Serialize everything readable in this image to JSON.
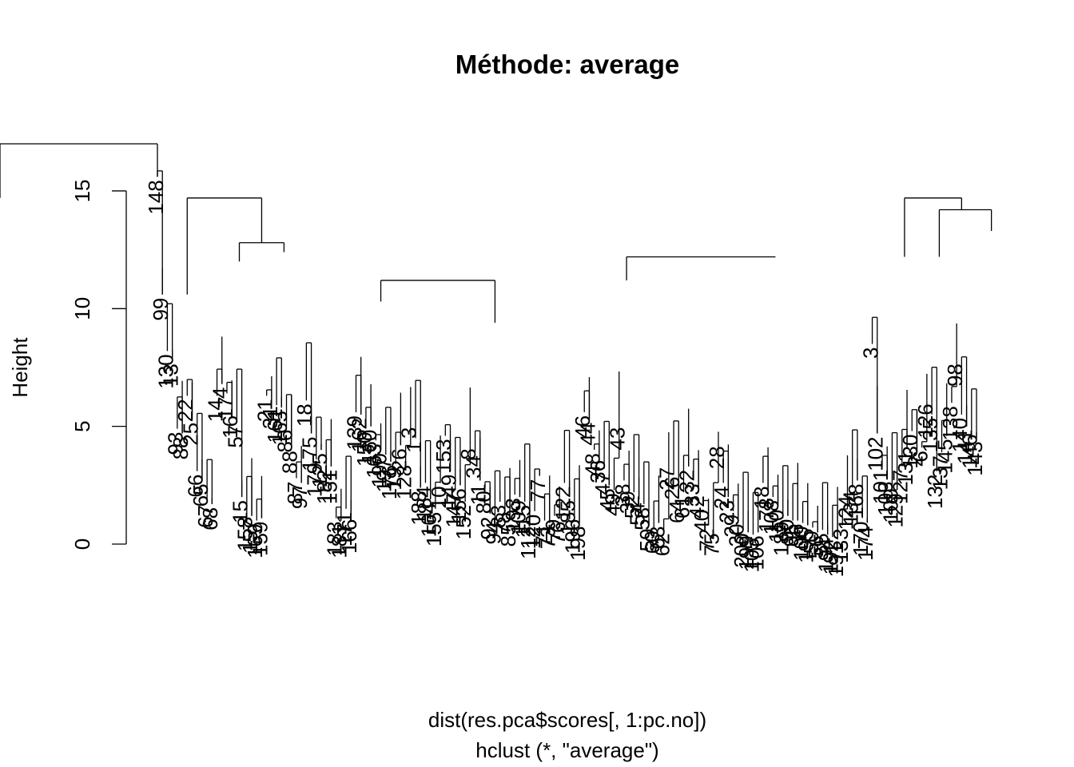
{
  "chart_data": {
    "type": "dendrogram",
    "title": "Méthode: average",
    "ylabel": "Height",
    "xlabel": "dist(res.pca$scores[, 1:pc.no])",
    "sub": "hclust (*, \"average\")",
    "ylim": [
      0,
      17
    ],
    "yticks": [
      0,
      5,
      10,
      15
    ],
    "merges": [
      {
        "left": [
          0,
          15.6
        ],
        "right": [
          13,
          14.7
        ],
        "height": 17.0
      },
      {
        "left": [
          2,
          12.0
        ],
        "right": [
          3,
          12.4
        ],
        "height": 12.8
      },
      {
        "left": [
          1,
          10.6
        ],
        "right": [
          4,
          12.8
        ],
        "height": 14.7
      },
      {
        "left": [
          5,
          10.3
        ],
        "right": [
          6,
          9.4
        ],
        "height": 11.2
      },
      {
        "left": [
          7,
          11.2
        ],
        "right": [
          8,
          12.2
        ],
        "height": 12.2
      },
      {
        "left": [
          9,
          12.2
        ],
        "right": [
          11,
          14.2
        ],
        "height": 14.7
      },
      {
        "left": [
          10,
          12.2
        ],
        "right": [
          12,
          13.3
        ],
        "height": 14.2
      }
    ],
    "leaves": [
      {
        "label": "148",
        "height": 15.6
      },
      {
        "label": "99",
        "height": 10.6
      },
      {
        "label": "130",
        "height": 8.2
      },
      {
        "label": "13",
        "height": 7.8
      },
      {
        "label": "93",
        "height": 4.9
      },
      {
        "label": "88",
        "height": 4.7
      },
      {
        "label": "22",
        "height": 6.3
      },
      {
        "label": "25",
        "height": 5.3
      },
      {
        "label": "66",
        "height": 3.1
      },
      {
        "label": "65",
        "height": 2.7
      },
      {
        "label": "67",
        "height": 1.8
      },
      {
        "label": "68",
        "height": 1.7
      },
      {
        "label": "14",
        "height": 6.3
      },
      {
        "label": "4",
        "height": 6.8
      },
      {
        "label": "17",
        "height": 6.4
      },
      {
        "label": "16",
        "height": 5.6
      },
      {
        "label": "57",
        "height": 5.2
      },
      {
        "label": "15",
        "height": 2.0
      },
      {
        "label": "158",
        "height": 1.3
      },
      {
        "label": "157",
        "height": 1.2
      },
      {
        "label": "169",
        "height": 1.0
      },
      {
        "label": "159",
        "height": 1.1
      },
      {
        "label": "21",
        "height": 6.3
      },
      {
        "label": "31",
        "height": 6.0
      },
      {
        "label": "161",
        "height": 5.9
      },
      {
        "label": "165",
        "height": 5.8
      },
      {
        "label": "86",
        "height": 5.0
      },
      {
        "label": "88",
        "height": 4.1
      },
      {
        "label": "87",
        "height": 2.8
      },
      {
        "label": "97",
        "height": 2.6
      },
      {
        "label": "18",
        "height": 6.1
      },
      {
        "label": "175",
        "height": 4.7
      },
      {
        "label": "179",
        "height": 3.6
      },
      {
        "label": "125",
        "height": 4.0
      },
      {
        "label": "182",
        "height": 3.3
      },
      {
        "label": "151",
        "height": 3.3
      },
      {
        "label": "183",
        "height": 1.1
      },
      {
        "label": "181",
        "height": 1.0
      },
      {
        "label": "171",
        "height": 1.5
      },
      {
        "label": "166",
        "height": 1.2
      },
      {
        "label": "139",
        "height": 5.6
      },
      {
        "label": "162",
        "height": 5.5
      },
      {
        "label": "150",
        "height": 4.9
      },
      {
        "label": "160",
        "height": 5.0
      },
      {
        "label": "163",
        "height": 4.4
      },
      {
        "label": "190",
        "height": 4.0
      },
      {
        "label": "197",
        "height": 3.8
      },
      {
        "label": "176",
        "height": 3.5
      },
      {
        "label": "19",
        "height": 3.4
      },
      {
        "label": "26",
        "height": 4.2
      },
      {
        "label": "128",
        "height": 3.5
      },
      {
        "label": "3",
        "height": 5.1
      },
      {
        "label": "1",
        "height": 4.5
      },
      {
        "label": "188",
        "height": 2.4
      },
      {
        "label": "184",
        "height": 2.6
      },
      {
        "label": "164",
        "height": 1.9
      },
      {
        "label": "155",
        "height": 1.5
      },
      {
        "label": "10",
        "height": 2.6
      },
      {
        "label": "153",
        "height": 4.6
      },
      {
        "label": "149",
        "height": 3.1
      },
      {
        "label": "147",
        "height": 2.3
      },
      {
        "label": "156",
        "height": 2.5
      },
      {
        "label": "152",
        "height": 1.8
      },
      {
        "label": "8",
        "height": 4.2
      },
      {
        "label": "34",
        "height": 3.9
      },
      {
        "label": "11",
        "height": 2.7
      },
      {
        "label": "80",
        "height": 2.4
      },
      {
        "label": "92",
        "height": 1.3
      },
      {
        "label": "94",
        "height": 1.1
      },
      {
        "label": "83",
        "height": 1.8
      },
      {
        "label": "78",
        "height": 1.5
      },
      {
        "label": "85",
        "height": 1.0
      },
      {
        "label": "193",
        "height": 2.1
      },
      {
        "label": "109",
        "height": 2.0
      },
      {
        "label": "115",
        "height": 1.8
      },
      {
        "label": "112",
        "height": 0.9
      },
      {
        "label": "120",
        "height": 1.4
      },
      {
        "label": "77",
        "height": 2.9
      },
      {
        "label": "71",
        "height": 1.0
      },
      {
        "label": "73",
        "height": 0.9
      },
      {
        "label": "79",
        "height": 1.2
      },
      {
        "label": "76",
        "height": 1.1
      },
      {
        "label": "122",
        "height": 2.6
      },
      {
        "label": "185",
        "height": 2.0
      },
      {
        "label": "196",
        "height": 1.2
      },
      {
        "label": "198",
        "height": 0.9
      },
      {
        "label": "46",
        "height": 5.6
      },
      {
        "label": "44",
        "height": 5.3
      },
      {
        "label": "48",
        "height": 4.0
      },
      {
        "label": "36",
        "height": 3.7
      },
      {
        "label": "47",
        "height": 3.2
      },
      {
        "label": "45",
        "height": 2.5
      },
      {
        "label": "49",
        "height": 2.3
      },
      {
        "label": "43",
        "height": 5.1
      },
      {
        "label": "38",
        "height": 2.7
      },
      {
        "label": "39",
        "height": 2.4
      },
      {
        "label": "52",
        "height": 2.2
      },
      {
        "label": "54",
        "height": 1.9
      },
      {
        "label": "58",
        "height": 1.7
      },
      {
        "label": "59",
        "height": 0.8
      },
      {
        "label": "60",
        "height": 0.7
      },
      {
        "label": "63",
        "height": 0.9
      },
      {
        "label": "62",
        "height": 0.6
      },
      {
        "label": "27",
        "height": 3.4
      },
      {
        "label": "26",
        "height": 3.0
      },
      {
        "label": "64",
        "height": 2.0
      },
      {
        "label": "61",
        "height": 2.2
      },
      {
        "label": "32",
        "height": 3.3
      },
      {
        "label": "33",
        "height": 2.7
      },
      {
        "label": "42",
        "height": 2.2
      },
      {
        "label": "40",
        "height": 1.6
      },
      {
        "label": "72",
        "height": 0.8
      },
      {
        "label": "75",
        "height": 0.6
      },
      {
        "label": "28",
        "height": 4.3
      },
      {
        "label": "24",
        "height": 2.6
      },
      {
        "label": "23",
        "height": 2.0
      },
      {
        "label": "29",
        "height": 1.4
      },
      {
        "label": "30",
        "height": 1.0
      },
      {
        "label": "200",
        "height": 0.6
      },
      {
        "label": "199",
        "height": 0.5
      },
      {
        "label": "105",
        "height": 0.4
      },
      {
        "label": "106",
        "height": 0.5
      },
      {
        "label": "18",
        "height": 2.6
      },
      {
        "label": "178",
        "height": 2.1
      },
      {
        "label": "108",
        "height": 2.0
      },
      {
        "label": "110",
        "height": 1.6
      },
      {
        "label": "189",
        "height": 1.1
      },
      {
        "label": "90",
        "height": 1.2
      },
      {
        "label": "95",
        "height": 1.0
      },
      {
        "label": "96",
        "height": 1.0
      },
      {
        "label": "100",
        "height": 0.9
      },
      {
        "label": "195",
        "height": 0.8
      },
      {
        "label": "50",
        "height": 0.7
      },
      {
        "label": "56",
        "height": 0.5
      },
      {
        "label": "55",
        "height": 0.6
      },
      {
        "label": "194",
        "height": 0.4
      },
      {
        "label": "192",
        "height": 0.3
      },
      {
        "label": "191",
        "height": 0.2
      },
      {
        "label": "133",
        "height": 0.8
      },
      {
        "label": "124",
        "height": 2.2
      },
      {
        "label": "134",
        "height": 2.4
      },
      {
        "label": "168",
        "height": 2.7
      },
      {
        "label": "170",
        "height": 1.1
      },
      {
        "label": "174",
        "height": 0.9
      },
      {
        "label": "3",
        "height": 8.5
      },
      {
        "label": "102",
        "height": 4.7
      },
      {
        "label": "101",
        "height": 3.3
      },
      {
        "label": "103",
        "height": 2.8
      },
      {
        "label": "109",
        "height": 2.5
      },
      {
        "label": "129",
        "height": 2.3
      },
      {
        "label": "127",
        "height": 3.3
      },
      {
        "label": "131",
        "height": 4.1
      },
      {
        "label": "130",
        "height": 4.8
      },
      {
        "label": "2",
        "height": 3.9
      },
      {
        "label": "6",
        "height": 4.1
      },
      {
        "label": "126",
        "height": 6.1
      },
      {
        "label": "135",
        "height": 5.5
      },
      {
        "label": "132",
        "height": 3.1
      },
      {
        "label": "137",
        "height": 3.9
      },
      {
        "label": "145",
        "height": 4.6
      },
      {
        "label": "138",
        "height": 6.0
      },
      {
        "label": "98",
        "height": 7.8
      },
      {
        "label": "140",
        "height": 5.5
      },
      {
        "label": "141",
        "height": 5.0
      },
      {
        "label": "146",
        "height": 4.8
      },
      {
        "label": "143",
        "height": 4.5
      }
    ]
  }
}
